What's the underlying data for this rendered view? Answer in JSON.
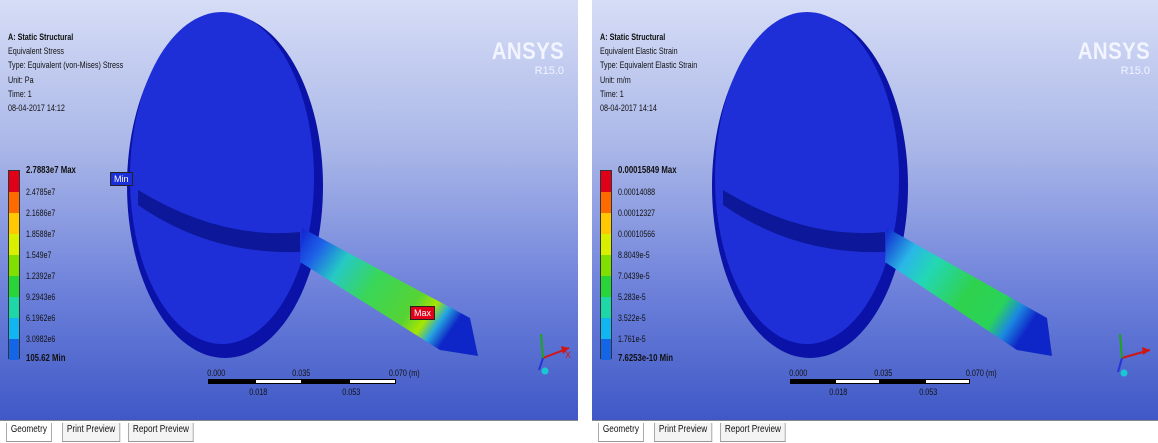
{
  "panels": [
    {
      "info": {
        "title": "A: Static Structural",
        "result": "Equivalent Stress",
        "type": "Type: Equivalent (von-Mises) Stress",
        "unit": "Unit: Pa",
        "time": "Time: 1",
        "date": "08-04-2017 14:12"
      },
      "brand": "ANSYS",
      "version": "R15.0",
      "legend": [
        "2.7883e7 Max",
        "2.4785e7",
        "2.1686e7",
        "1.8588e7",
        "1.549e7",
        "1.2392e7",
        "9.2943e6",
        "6.1962e6",
        "3.0982e6",
        "105.62 Min"
      ],
      "probe_min": "Min",
      "probe_max": "Max",
      "scale": {
        "t0": "0.000",
        "t1": "0.035",
        "t2": "0.070 (m)",
        "s1": "0.018",
        "s2": "0.053"
      },
      "triad_x": "X",
      "tabs": [
        "Geometry",
        "Print Preview",
        "Report Preview"
      ]
    },
    {
      "info": {
        "title": "A: Static Structural",
        "result": "Equivalent Elastic Strain",
        "type": "Type: Equivalent Elastic Strain",
        "unit": "Unit: m/m",
        "time": "Time: 1",
        "date": "08-04-2017 14:14"
      },
      "brand": "ANSYS",
      "version": "R15.0",
      "legend": [
        "0.00015849 Max",
        "0.00014088",
        "0.00012327",
        "0.00010566",
        "8.8049e-5",
        "7.0439e-5",
        "5.283e-5",
        "3.522e-5",
        "1.761e-5",
        "7.6253e-10 Min"
      ],
      "scale": {
        "t0": "0.000",
        "t1": "0.035",
        "t2": "0.070 (m)",
        "s1": "0.018",
        "s2": "0.053"
      },
      "tabs": [
        "Geometry",
        "Print Preview",
        "Report Preview"
      ]
    }
  ],
  "colors": {
    "legend": [
      "#e0001a",
      "#ff6a00",
      "#ffc800",
      "#d9ef00",
      "#7fe000",
      "#27d43a",
      "#1ed7a6",
      "#11b5ef",
      "#1466e6",
      "#0a14c8"
    ]
  }
}
